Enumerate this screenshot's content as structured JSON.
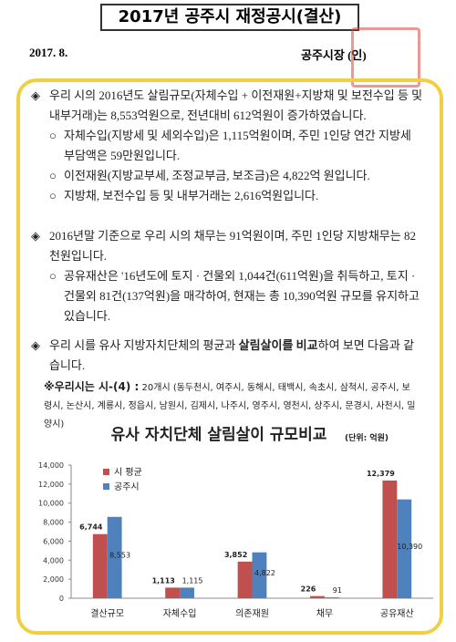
{
  "header": {
    "title": "2017년 공주시 재정공시(결산)",
    "date": "2017. 8.",
    "signature": "공주시장 (인)"
  },
  "sections": [
    {
      "text": "우리 시의 2016년도 살림규모(자체수입 + 이전재원+지방채 및 보전수입 등 및 내부거래)는 8,553억원으로, 전년대비 612억원이 증가하였습니다.",
      "items": [
        "자체수입(지방세 및 세외수입)은 1,115억원이며, 주민 1인당 연간 지방세 부담액은 59만원입니다.",
        "이전재원(지방교부세, 조정교부금, 보조금)은 4,822억 원입니다.",
        "지방채, 보전수입 등 및 내부거래는 2,616억원입니다."
      ]
    },
    {
      "text": "2016년말 기준으로 우리 시의 채무는 91억원이며, 주민 1인당 지방채무는 82천원입니다.",
      "items": [
        "공유재산은 '16년도에 토지 · 건물외 1,044건(611억원)을 취득하고, 토지 · 건물외 81건(137억원)을 매각하여, 현재는 총 10,390억원 규모를 유지하고 있습니다."
      ]
    },
    {
      "parts": [
        "우리 시를 유사 지방자치단체의 평균과 ",
        "살림살이를 비교",
        "하여 보면 다음과 같습니다."
      ]
    }
  ],
  "note": {
    "label": "※우리시는 시-(4) :",
    "text": "20개시 (동두천시, 여주시, 동해시, 태백시, 속초시, 삼척시, 공주시, 보령시, 논산시, 계룡시, 정읍시, 남원시, 김제시, 나주시, 영주시, 영천시, 상주시, 문경시, 사천시, 밀양시)"
  },
  "chart_data": {
    "type": "bar",
    "title": "유사 자치단체 살림살이 규모비교",
    "unit": "(단위: 억원)",
    "categories": [
      "결산규모",
      "자체수입",
      "의존재원",
      "채무",
      "공유재산"
    ],
    "series": [
      {
        "name": "시 평균",
        "color": "#c0504d",
        "values": [
          6744,
          1113,
          3852,
          226,
          12379
        ],
        "value_labels": [
          "6,744",
          "1,113",
          "3,852",
          "226",
          "12,379"
        ]
      },
      {
        "name": "공주시",
        "color": "#4f81bd",
        "values": [
          8553,
          1115,
          4822,
          91,
          10390
        ],
        "value_labels": [
          "8,553",
          "1,115",
          "4,822",
          "91",
          "10,390"
        ]
      }
    ],
    "ylim": [
      0,
      14000
    ],
    "yticks": [
      0,
      {
        "value": 2000,
        "label": "2,000"
      },
      {
        "value": 4000,
        "label": "4,000"
      },
      {
        "value": 6000,
        "label": "6,000"
      },
      {
        "value": 8000,
        "label": "8,000"
      },
      {
        "value": 10000,
        "label": "10,000"
      },
      {
        "value": 12000,
        "label": "12,000"
      },
      {
        "value": 14000,
        "label": "14,000"
      }
    ],
    "legend": "upper left"
  }
}
